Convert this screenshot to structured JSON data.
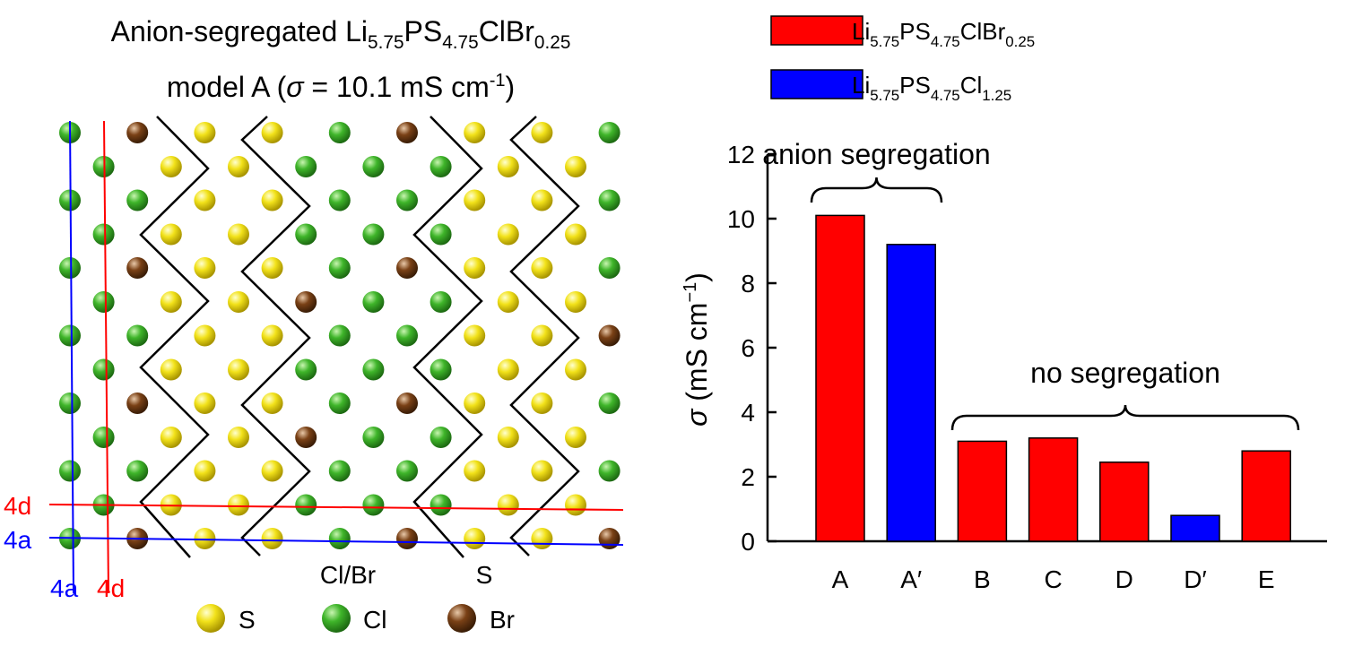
{
  "structure": {
    "title_parts": [
      "Anion-segregated Li",
      "5.75",
      "PS",
      "4.75",
      "ClBr",
      "0.25"
    ],
    "subtitle_parts": [
      "model A (",
      "σ",
      " = 10.1 mS cm",
      "-1",
      ")"
    ],
    "site_labels": [
      "4d",
      "4a",
      "4a",
      "4d"
    ],
    "region_labels": [
      "Cl/Br",
      "S"
    ],
    "legend": [
      "S",
      "Cl",
      "Br"
    ]
  },
  "chart_data": {
    "type": "bar",
    "categories": [
      "A",
      "A′",
      "B",
      "C",
      "D",
      "D′",
      "E"
    ],
    "series": [
      {
        "name": [
          "Li",
          "5.75",
          "PS",
          "4.75",
          "ClBr",
          "0.25"
        ],
        "color": "#ff0000",
        "values": [
          10.1,
          null,
          3.1,
          3.2,
          2.45,
          null,
          2.8
        ]
      },
      {
        "name": [
          "Li",
          "5.75",
          "PS",
          "4.75",
          "Cl",
          "1.25"
        ],
        "color": "#0000ff",
        "values": [
          null,
          9.2,
          null,
          null,
          null,
          0.8,
          null
        ]
      }
    ],
    "y_label_parts": [
      "σ",
      " (mS cm",
      "−1",
      ")"
    ],
    "annotations": [
      "anion segregation",
      "no segregation"
    ],
    "ylim": [
      0,
      12
    ],
    "yticks": [
      0,
      2,
      4,
      6,
      8,
      10,
      12
    ],
    "grid": false
  }
}
